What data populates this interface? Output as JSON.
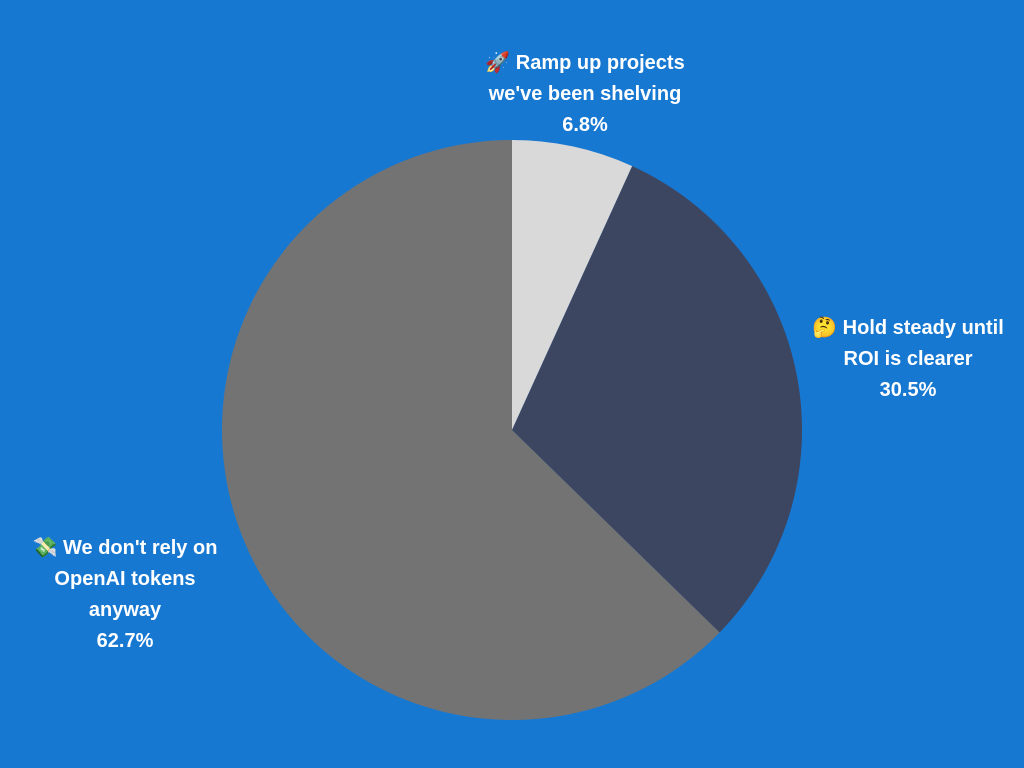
{
  "chart_data": {
    "type": "pie",
    "categories": [
      "🚀 Ramp up projects we've been shelving",
      "🤔 Hold steady until ROI is clearer",
      "💸 We don't rely on OpenAI tokens anyway"
    ],
    "values": [
      6.8,
      30.5,
      62.7
    ],
    "value_labels": [
      "6.8%",
      "30.5%",
      "62.7%"
    ],
    "colors": [
      "#d9d9d9",
      "#3d4660",
      "#737373"
    ]
  }
}
